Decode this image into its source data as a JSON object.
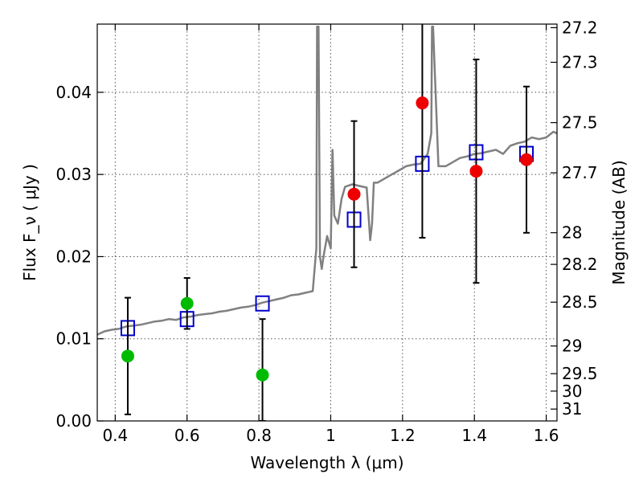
{
  "chart_data": {
    "type": "scatter",
    "xlabel": "Wavelength  λ (μm)",
    "ylabel": "Flux  F_ν  ( μJy )",
    "y2label": "Magnitude (AB)",
    "xlim": [
      0.35,
      1.63
    ],
    "ylim": [
      0.0,
      0.0483
    ],
    "grid": true,
    "x_ticks": [
      "0.4",
      "0.6",
      "0.8",
      "1",
      "1.2",
      "1.4",
      "1.6"
    ],
    "y_ticks": [
      "0.00",
      "0.01",
      "0.02",
      "0.03",
      "0.04"
    ],
    "y2_ticks": [
      "27.2",
      "27.3",
      "27.5",
      "27.7",
      "28",
      "28.2",
      "28.5",
      "29",
      "29.5",
      "30",
      "31"
    ],
    "colors": {
      "spectrum": "#808080",
      "model": "#0000cc",
      "optical": "#00bb00",
      "nir": "#ee0000",
      "errorbar": "#000000"
    },
    "series": [
      {
        "type": "line",
        "x": [
          0.35,
          0.37,
          0.39,
          0.41,
          0.43,
          0.45,
          0.47,
          0.49,
          0.51,
          0.53,
          0.55,
          0.57,
          0.59,
          0.61,
          0.63,
          0.65,
          0.67,
          0.69,
          0.71,
          0.73,
          0.75,
          0.77,
          0.79,
          0.81,
          0.83,
          0.85,
          0.87,
          0.89,
          0.91,
          0.93,
          0.95,
          0.96,
          0.962,
          0.966,
          0.97,
          0.975,
          0.98,
          0.99,
          1.0,
          1.005,
          1.01,
          1.02,
          1.03,
          1.04,
          1.06,
          1.08,
          1.1,
          1.11,
          1.115,
          1.12,
          1.13,
          1.15,
          1.17,
          1.19,
          1.21,
          1.23,
          1.25,
          1.27,
          1.28,
          1.282,
          1.285,
          1.3,
          1.32,
          1.34,
          1.36,
          1.38,
          1.4,
          1.42,
          1.44,
          1.46,
          1.48,
          1.5,
          1.52,
          1.54,
          1.56,
          1.58,
          1.6,
          1.62,
          1.63
        ],
        "values": [
          0.0105,
          0.0109,
          0.0111,
          0.0112,
          0.0115,
          0.0116,
          0.0117,
          0.0119,
          0.0121,
          0.0122,
          0.0124,
          0.0123,
          0.0126,
          0.0127,
          0.0129,
          0.013,
          0.0131,
          0.0133,
          0.0134,
          0.0136,
          0.0138,
          0.0139,
          0.0141,
          0.0144,
          0.0146,
          0.0148,
          0.015,
          0.0153,
          0.0154,
          0.0156,
          0.0158,
          0.021,
          0.048,
          0.048,
          0.02,
          0.0185,
          0.02,
          0.0225,
          0.021,
          0.033,
          0.025,
          0.024,
          0.027,
          0.0285,
          0.0288,
          0.0286,
          0.0284,
          0.022,
          0.024,
          0.029,
          0.029,
          0.0295,
          0.03,
          0.0305,
          0.031,
          0.0312,
          0.0313,
          0.0325,
          0.035,
          0.048,
          0.048,
          0.031,
          0.031,
          0.0315,
          0.032,
          0.0322,
          0.0325,
          0.0326,
          0.0328,
          0.033,
          0.0325,
          0.0335,
          0.0338,
          0.034,
          0.0345,
          0.0343,
          0.0345,
          0.0352,
          0.035
        ]
      },
      {
        "type": "marker",
        "marker": "open-square",
        "x": [
          0.435,
          0.6,
          0.81,
          1.065,
          1.255,
          1.405,
          1.545
        ],
        "values": [
          0.0113,
          0.0124,
          0.0143,
          0.0245,
          0.0313,
          0.0327,
          0.0325
        ]
      },
      {
        "type": "errorbar",
        "marker": "filled-circle",
        "x": [
          0.435,
          0.6,
          0.81
        ],
        "values": [
          0.0079,
          0.0143,
          0.0056
        ],
        "err": [
          0.0071,
          0.0031,
          0.0068
        ]
      },
      {
        "type": "errorbar",
        "marker": "filled-circle",
        "x": [
          1.065,
          1.255,
          1.405,
          1.545
        ],
        "values": [
          0.0276,
          0.0387,
          0.0304,
          0.0318
        ],
        "err": [
          0.0089,
          0.0164,
          0.0136,
          0.0089
        ]
      }
    ]
  }
}
